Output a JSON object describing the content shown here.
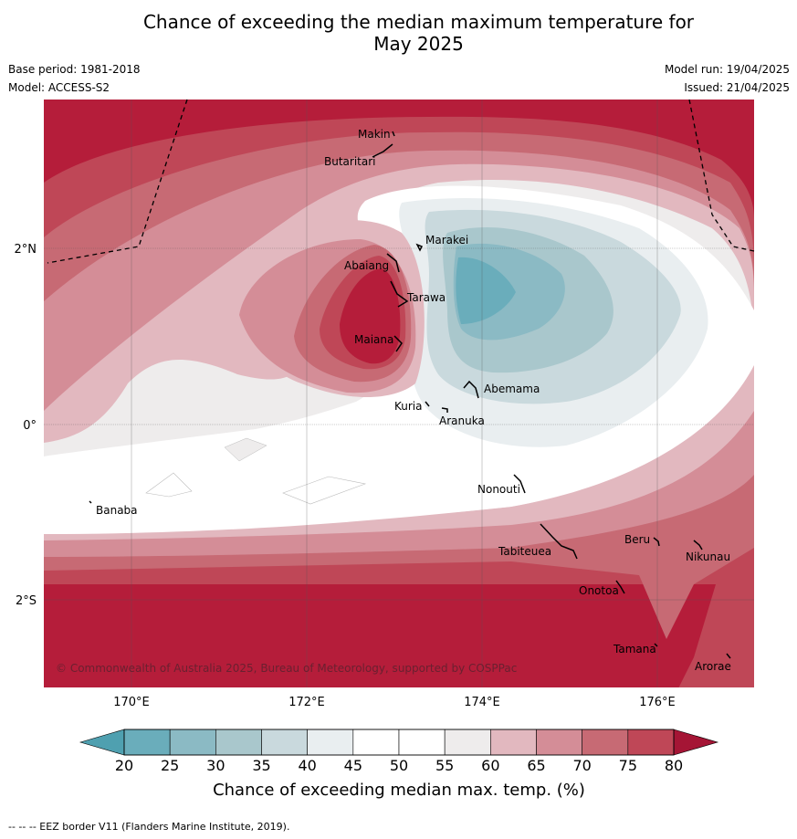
{
  "title": {
    "line1": "Chance of exceeding the median maximum temperature for",
    "line2": "May 2025"
  },
  "meta": {
    "base_period": "Base period: 1981-2018",
    "model": "Model: ACCESS-S2",
    "model_run": "Model run: 19/04/2025",
    "issued": "Issued: 21/04/2025"
  },
  "axes": {
    "x_ticks": [
      "170°E",
      "172°E",
      "174°E",
      "176°E"
    ],
    "y_ticks": [
      "2°N",
      "0°",
      "2°S"
    ]
  },
  "places": [
    "Makin",
    "Butaritari",
    "Marakei",
    "Abaiang",
    "Tarawa",
    "Maiana",
    "Abemama",
    "Kuria",
    "Aranuka",
    "Nonouti",
    "Banaba",
    "Tabiteuea",
    "Beru",
    "Nikunau",
    "Onotoa",
    "Tamana",
    "Arorae"
  ],
  "copyright": "© Commonwealth of Australia 2025, Bureau of Meteorology, supported by COSPPac",
  "colorbar": {
    "ticks": [
      "20",
      "25",
      "30",
      "35",
      "40",
      "45",
      "50",
      "55",
      "60",
      "65",
      "70",
      "75",
      "80"
    ],
    "title": "Chance of exceeding median max. temp. (%)",
    "colors": [
      "#6aadbb",
      "#8bbac4",
      "#a9c7cc",
      "#c9d9dd",
      "#e9eef0",
      "#ffffff",
      "#ffffff",
      "#eeecec",
      "#e2b8bf",
      "#d48d97",
      "#c76a74",
      "#bf4757",
      "#b51d3a"
    ]
  },
  "footer": "--  --  -- EEZ border V11 (Flanders Marine Institute, 2019)."
}
